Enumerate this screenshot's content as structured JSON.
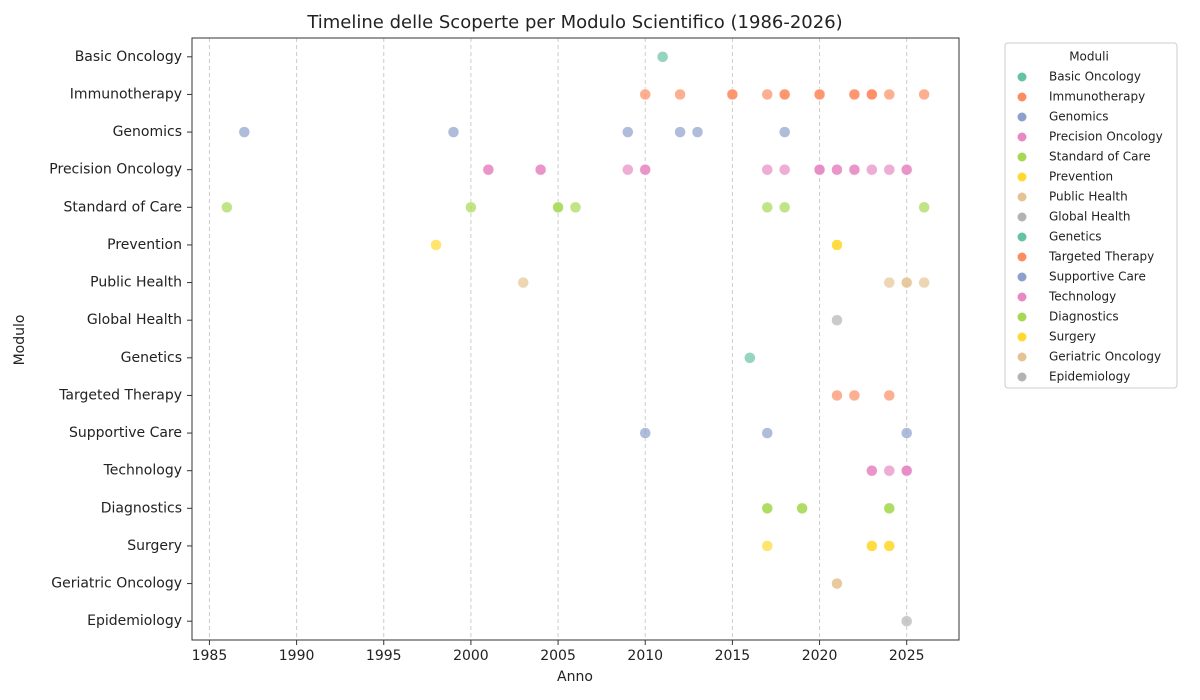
{
  "chart_data": {
    "type": "scatter",
    "title": "Timeline delle Scoperte per Modulo Scientifico (1986-2026)",
    "x_label": "Anno",
    "y_label": "Modulo",
    "legend_title": "Moduli",
    "legend": "outside-right",
    "grid": true,
    "xlim": [
      1984,
      2028
    ],
    "xticks": [
      1985,
      1990,
      1995,
      2000,
      2005,
      2010,
      2015,
      2020,
      2025
    ],
    "categories": [
      "Basic Oncology",
      "Immunotherapy",
      "Genomics",
      "Precision Oncology",
      "Standard of Care",
      "Prevention",
      "Public Health",
      "Global Health",
      "Genetics",
      "Targeted Therapy",
      "Supportive Care",
      "Technology",
      "Diagnostics",
      "Surgery",
      "Geriatric Oncology",
      "Epidemiology"
    ],
    "series": [
      {
        "name": "Basic Oncology",
        "color": "#66c2a5",
        "x": [
          2011
        ]
      },
      {
        "name": "Immunotherapy",
        "color": "#fc8d62",
        "x": [
          2010,
          2012,
          2015,
          2015,
          2017,
          2018,
          2018,
          2020,
          2020,
          2022,
          2022,
          2023,
          2023,
          2023,
          2024,
          2026
        ]
      },
      {
        "name": "Genomics",
        "color": "#8da0cb",
        "x": [
          1987,
          1999,
          2009,
          2012,
          2013,
          2018
        ]
      },
      {
        "name": "Precision Oncology",
        "color": "#e78ac3",
        "x": [
          2001,
          2001,
          2004,
          2004,
          2009,
          2010,
          2010,
          2017,
          2018,
          2020,
          2020,
          2020,
          2021,
          2021,
          2022,
          2022,
          2023,
          2024,
          2025,
          2025
        ]
      },
      {
        "name": "Standard of Care",
        "color": "#a6d854",
        "x": [
          1986,
          2000,
          2005,
          2005,
          2006,
          2017,
          2018,
          2026
        ]
      },
      {
        "name": "Prevention",
        "color": "#ffd92f",
        "x": [
          1998,
          2021,
          2021
        ]
      },
      {
        "name": "Public Health",
        "color": "#e5c494",
        "x": [
          2003,
          2024,
          2025,
          2025,
          2026
        ]
      },
      {
        "name": "Global Health",
        "color": "#b3b3b3",
        "x": [
          2021
        ]
      },
      {
        "name": "Genetics",
        "color": "#66c2a5",
        "x": [
          2016
        ]
      },
      {
        "name": "Targeted Therapy",
        "color": "#fc8d62",
        "x": [
          2021,
          2022,
          2024
        ]
      },
      {
        "name": "Supportive Care",
        "color": "#8da0cb",
        "x": [
          2010,
          2017,
          2025
        ]
      },
      {
        "name": "Technology",
        "color": "#e78ac3",
        "x": [
          2023,
          2023,
          2024,
          2025,
          2025,
          2025
        ]
      },
      {
        "name": "Diagnostics",
        "color": "#a6d854",
        "x": [
          2017,
          2017,
          2019,
          2019,
          2024,
          2024
        ]
      },
      {
        "name": "Surgery",
        "color": "#ffd92f",
        "x": [
          2017,
          2023,
          2023,
          2024,
          2024
        ]
      },
      {
        "name": "Geriatric Oncology",
        "color": "#e5c494",
        "x": [
          2021,
          2021
        ]
      },
      {
        "name": "Epidemiology",
        "color": "#b3b3b3",
        "x": [
          2025
        ]
      }
    ]
  }
}
